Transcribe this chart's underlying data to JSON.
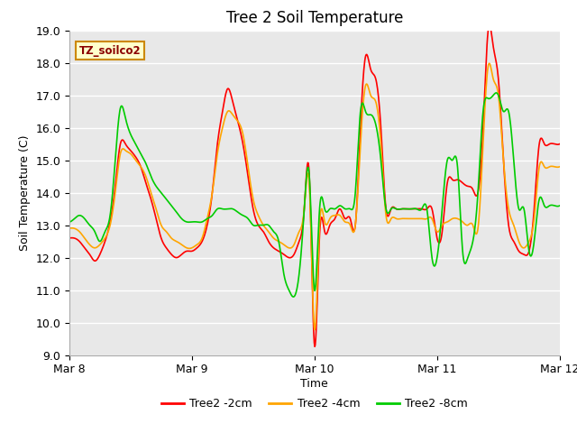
{
  "title": "Tree 2 Soil Temperature",
  "ylabel": "Soil Temperature (C)",
  "xlabel": "Time",
  "ylim": [
    9.0,
    19.0
  ],
  "yticks": [
    9.0,
    10.0,
    11.0,
    12.0,
    13.0,
    14.0,
    15.0,
    16.0,
    17.0,
    18.0,
    19.0
  ],
  "xtick_labels": [
    "Mar 8",
    "Mar 9",
    "Mar 10",
    "Mar 11",
    "Mar 12"
  ],
  "timezone_label": "TZ_soilco2",
  "line_colors": {
    "2cm": "#FF0000",
    "4cm": "#FFA500",
    "8cm": "#00CC00"
  },
  "legend_labels": [
    "Tree2 -2cm",
    "Tree2 -4cm",
    "Tree2 -8cm"
  ],
  "plot_bg_color": "#E8E8E8",
  "title_fontsize": 12,
  "label_fontsize": 9,
  "tick_fontsize": 9,
  "x_key_2cm": [
    0,
    1,
    2,
    3,
    4,
    5,
    6,
    7,
    8,
    9,
    10,
    11,
    12,
    13,
    14,
    15,
    16,
    17,
    18,
    19,
    20,
    21,
    22,
    23,
    24,
    25,
    26,
    27,
    28,
    29,
    30,
    31,
    32,
    33,
    34,
    35,
    36,
    37,
    38,
    39,
    40,
    41,
    42,
    43,
    44,
    45,
    46,
    47,
    48,
    49,
    50,
    51,
    52,
    53,
    54,
    55,
    56,
    57,
    58,
    59,
    60,
    61,
    62,
    63,
    64,
    65,
    66,
    67,
    68,
    69,
    70,
    71,
    72,
    73,
    74,
    75,
    76,
    77,
    78,
    79,
    80,
    81,
    82,
    83,
    84,
    85,
    86,
    87,
    88,
    89,
    90,
    91,
    92,
    93,
    94,
    95,
    96
  ],
  "y_key_2cm": [
    12.6,
    12.6,
    12.5,
    12.3,
    12.1,
    11.9,
    12.1,
    12.5,
    13.1,
    14.2,
    15.5,
    15.5,
    15.3,
    15.1,
    14.8,
    14.3,
    13.8,
    13.2,
    12.6,
    12.3,
    12.1,
    12.0,
    12.1,
    12.2,
    12.2,
    12.3,
    12.5,
    13.0,
    14.0,
    15.5,
    16.5,
    17.2,
    16.8,
    16.2,
    15.5,
    14.5,
    13.5,
    13.0,
    12.8,
    12.5,
    12.3,
    12.2,
    12.1,
    12.0,
    12.1,
    12.5,
    13.5,
    14.5,
    9.3,
    12.7,
    12.8,
    13.0,
    13.2,
    13.5,
    13.2,
    13.2,
    13.0,
    16.0,
    18.2,
    17.8,
    17.5,
    16.0,
    13.5,
    13.5,
    13.5,
    13.5,
    13.5,
    13.5,
    13.5,
    13.5,
    13.5,
    13.5,
    12.6,
    12.8,
    14.3,
    14.4,
    14.4,
    14.3,
    14.2,
    14.1,
    14.0,
    16.0,
    19.0,
    18.5,
    17.5,
    15.0,
    13.0,
    12.5,
    12.2,
    12.1,
    12.2,
    13.5,
    15.5,
    15.5,
    15.5,
    15.5,
    15.5
  ],
  "x_key_4cm": [
    0,
    1,
    2,
    3,
    4,
    5,
    6,
    7,
    8,
    9,
    10,
    11,
    12,
    13,
    14,
    15,
    16,
    17,
    18,
    19,
    20,
    21,
    22,
    23,
    24,
    25,
    26,
    27,
    28,
    29,
    30,
    31,
    32,
    33,
    34,
    35,
    36,
    37,
    38,
    39,
    40,
    41,
    42,
    43,
    44,
    45,
    46,
    47,
    48,
    49,
    50,
    51,
    52,
    53,
    54,
    55,
    56,
    57,
    58,
    59,
    60,
    61,
    62,
    63,
    64,
    65,
    66,
    67,
    68,
    69,
    70,
    71,
    72,
    73,
    74,
    75,
    76,
    77,
    78,
    79,
    80,
    81,
    82,
    83,
    84,
    85,
    86,
    87,
    88,
    89,
    90,
    91,
    92,
    93,
    94,
    95,
    96
  ],
  "y_key_4cm": [
    12.9,
    12.9,
    12.8,
    12.6,
    12.4,
    12.3,
    12.4,
    12.6,
    13.0,
    14.0,
    15.2,
    15.3,
    15.2,
    15.0,
    14.8,
    14.5,
    14.0,
    13.5,
    13.0,
    12.8,
    12.6,
    12.5,
    12.4,
    12.3,
    12.3,
    12.4,
    12.6,
    13.2,
    14.0,
    15.2,
    16.0,
    16.5,
    16.4,
    16.2,
    15.8,
    14.8,
    13.8,
    13.3,
    13.0,
    12.8,
    12.6,
    12.5,
    12.4,
    12.3,
    12.4,
    12.8,
    13.5,
    14.2,
    9.8,
    13.0,
    13.1,
    13.2,
    13.3,
    13.3,
    13.1,
    13.0,
    13.0,
    15.5,
    17.3,
    17.0,
    16.8,
    15.5,
    13.3,
    13.2,
    13.2,
    13.2,
    13.2,
    13.2,
    13.2,
    13.2,
    13.2,
    13.2,
    12.8,
    13.0,
    13.1,
    13.2,
    13.2,
    13.1,
    13.0,
    13.0,
    12.9,
    15.5,
    17.9,
    17.5,
    17.0,
    15.0,
    13.5,
    13.0,
    12.5,
    12.3,
    12.5,
    13.2,
    14.8,
    14.8,
    14.8,
    14.8,
    14.8
  ],
  "x_key_8cm": [
    0,
    1,
    2,
    3,
    4,
    5,
    6,
    7,
    8,
    9,
    10,
    11,
    12,
    13,
    14,
    15,
    16,
    17,
    18,
    19,
    20,
    21,
    22,
    23,
    24,
    25,
    26,
    27,
    28,
    29,
    30,
    31,
    32,
    33,
    34,
    35,
    36,
    37,
    38,
    39,
    40,
    41,
    42,
    43,
    44,
    45,
    46,
    47,
    48,
    49,
    50,
    51,
    52,
    53,
    54,
    55,
    56,
    57,
    58,
    59,
    60,
    61,
    62,
    63,
    64,
    65,
    66,
    67,
    68,
    69,
    70,
    71,
    72,
    73,
    74,
    75,
    76,
    77,
    78,
    79,
    80,
    81,
    82,
    83,
    84,
    85,
    86,
    87,
    88,
    89,
    90,
    91,
    92,
    93,
    94,
    95,
    96
  ],
  "y_key_8cm": [
    13.1,
    13.2,
    13.3,
    13.2,
    13.0,
    12.8,
    12.5,
    12.8,
    13.3,
    15.0,
    16.6,
    16.3,
    15.8,
    15.5,
    15.2,
    14.9,
    14.5,
    14.2,
    14.0,
    13.8,
    13.6,
    13.4,
    13.2,
    13.1,
    13.1,
    13.1,
    13.1,
    13.2,
    13.3,
    13.5,
    13.5,
    13.5,
    13.5,
    13.4,
    13.3,
    13.2,
    13.0,
    13.0,
    13.0,
    13.0,
    12.8,
    12.5,
    11.5,
    11.0,
    10.8,
    11.5,
    13.5,
    14.5,
    11.0,
    13.5,
    13.5,
    13.5,
    13.5,
    13.6,
    13.5,
    13.5,
    14.0,
    16.5,
    16.5,
    16.4,
    16.1,
    15.0,
    13.5,
    13.5,
    13.5,
    13.5,
    13.5,
    13.5,
    13.5,
    13.5,
    13.5,
    12.0,
    12.0,
    13.5,
    15.0,
    15.0,
    14.8,
    12.2,
    12.0,
    12.5,
    14.0,
    16.5,
    16.9,
    17.0,
    17.0,
    16.5,
    16.5,
    15.0,
    13.5,
    13.5,
    12.2,
    12.5,
    13.8,
    13.6,
    13.6,
    13.6,
    13.6
  ]
}
